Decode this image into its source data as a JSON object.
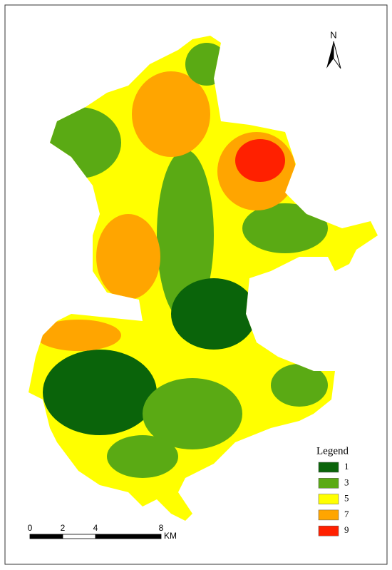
{
  "north_label": "N",
  "legend": {
    "title": "Legend",
    "items": [
      {
        "label": "1",
        "color": "#0a640a"
      },
      {
        "label": "3",
        "color": "#5aaa14"
      },
      {
        "label": "5",
        "color": "#ffff00"
      },
      {
        "label": "7",
        "color": "#ffa500"
      },
      {
        "label": "9",
        "color": "#ff2000"
      }
    ]
  },
  "scale_bar": {
    "ticks": [
      0,
      2,
      4,
      8
    ],
    "unit": "KM"
  }
}
